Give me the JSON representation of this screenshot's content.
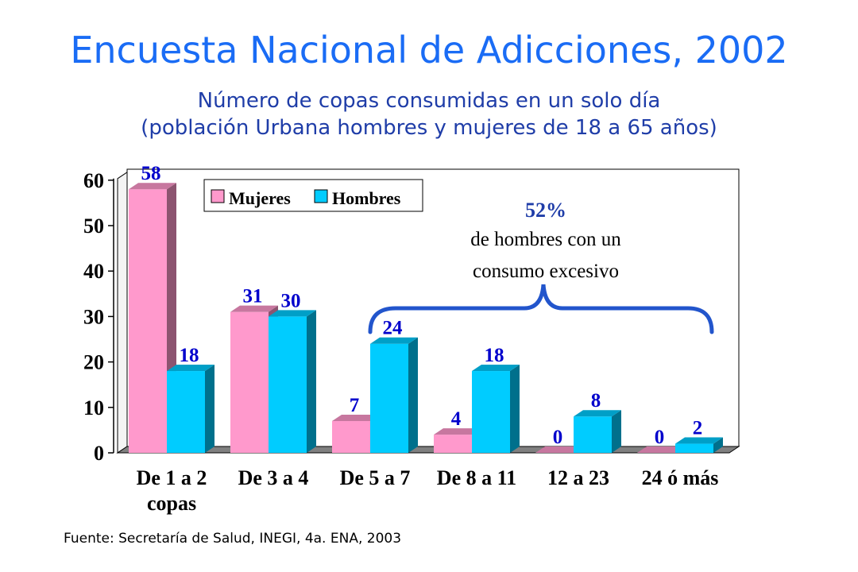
{
  "header": {
    "title": "Encuesta Nacional de Adicciones, 2002",
    "subtitle_line1": "Número de copas consumidas en un solo día",
    "subtitle_line2": "(población Urbana hombres y mujeres de 18 a 65 años)"
  },
  "footer": {
    "source": "Fuente: Secretaría de Salud, INEGI, 4a. ENA, 2003"
  },
  "colors": {
    "title": "#1a6cf5",
    "mujeres": "#ff99cc",
    "hombres": "#00ccff",
    "label": "#0000cc",
    "brace": "#2255cc",
    "floor": "#808080"
  },
  "chart_data": {
    "type": "bar",
    "categories": [
      [
        "De 1 a 2",
        "copas"
      ],
      [
        "De 3 a 4"
      ],
      [
        "De 5 a 7"
      ],
      [
        "De 8 a 11"
      ],
      [
        "12 a 23"
      ],
      [
        "24 ó más"
      ]
    ],
    "series": [
      {
        "name": "Mujeres",
        "values": [
          58,
          31,
          7,
          4,
          0,
          0
        ]
      },
      {
        "name": "Hombres",
        "values": [
          18,
          30,
          24,
          18,
          8,
          2
        ]
      }
    ],
    "ylim": [
      0,
      60
    ],
    "yticks": [
      0,
      10,
      20,
      30,
      40,
      50,
      60
    ],
    "legend_position": "top-left",
    "annotation": {
      "percent": "52%",
      "line1": "de hombres con un",
      "line2": "consumo excesivo"
    }
  }
}
